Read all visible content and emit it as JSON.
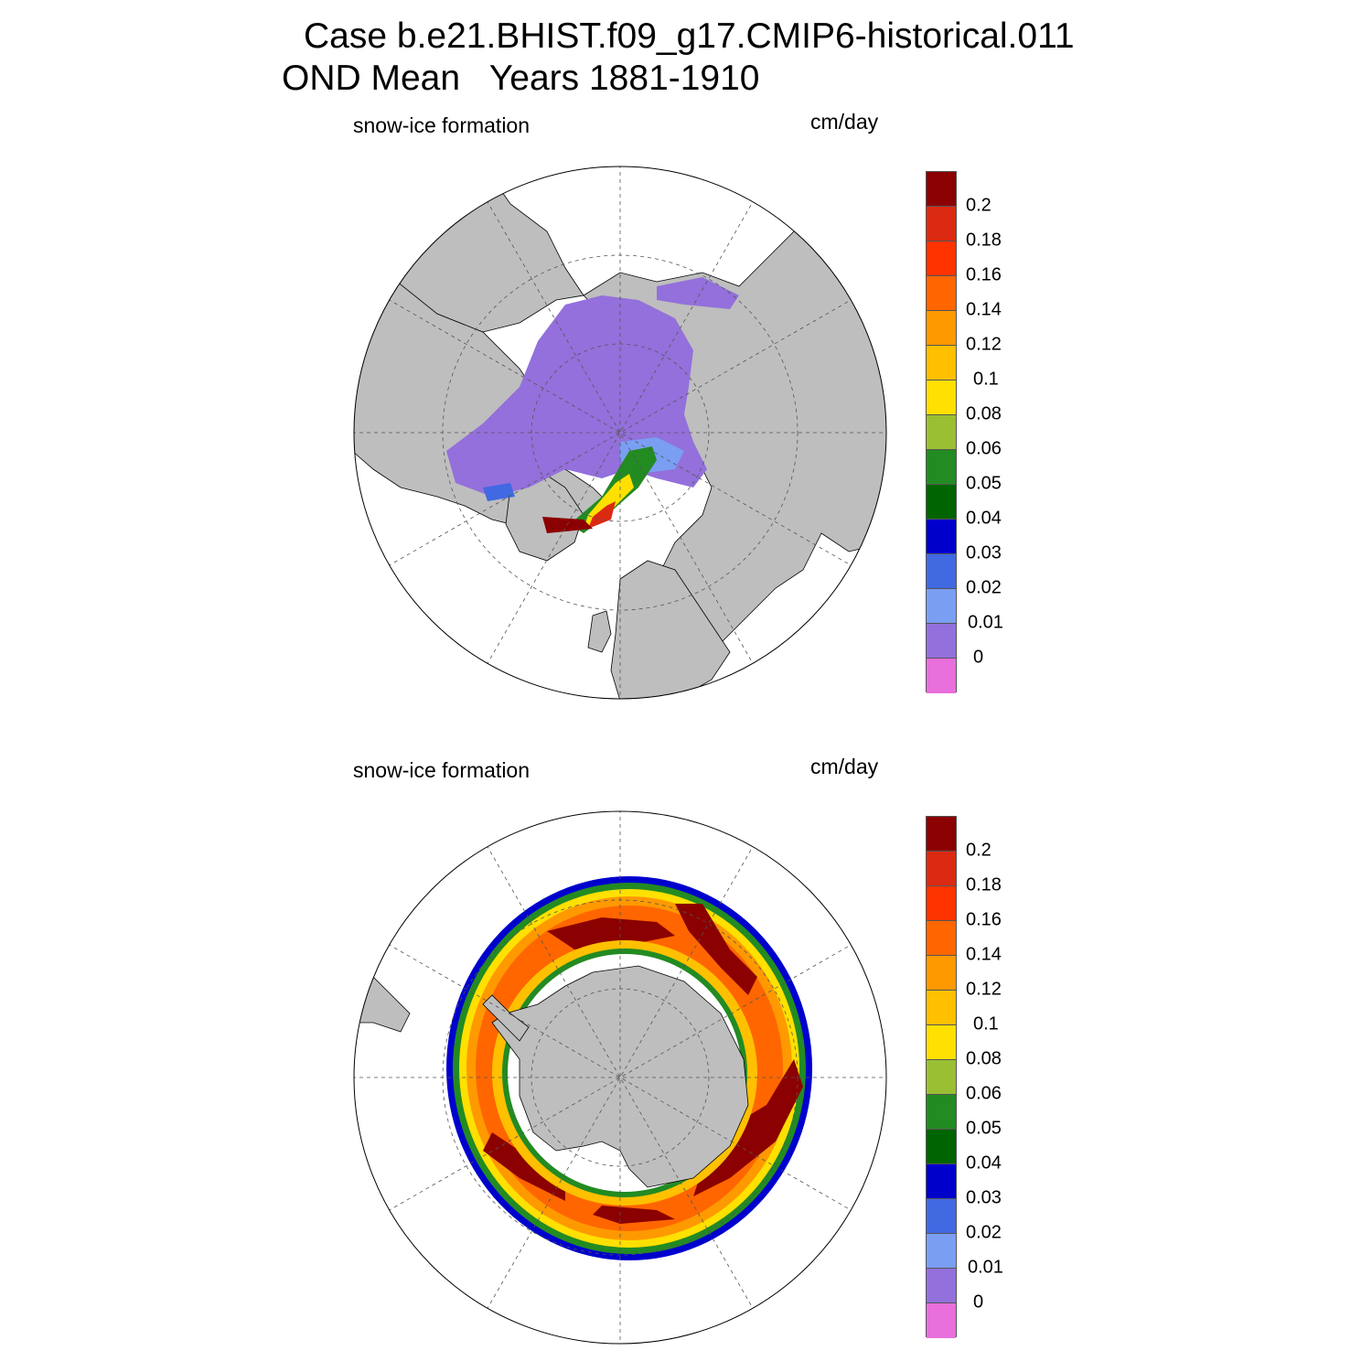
{
  "title": {
    "line1": "Case b.e21.BHIST.f09_g17.CMIP6-historical.011",
    "line2": "OND Mean   Years 1881-1910"
  },
  "panels": [
    {
      "id": "north",
      "variable_label": "snow-ice formation",
      "unit_label": "cm/day",
      "hemisphere": "north"
    },
    {
      "id": "south",
      "variable_label": "snow-ice formation",
      "unit_label": "cm/day",
      "hemisphere": "south"
    }
  ],
  "colorbar": {
    "levels": [
      "0.2",
      "0.18",
      "0.16",
      "0.14",
      "0.12",
      "0.1",
      "0.08",
      "0.06",
      "0.05",
      "0.04",
      "0.03",
      "0.02",
      "0.01",
      "0"
    ],
    "colors_top_to_bottom": [
      "#8b0000",
      "#dc2a12",
      "#ff3300",
      "#ff6600",
      "#ff9900",
      "#ffc000",
      "#ffe000",
      "#9bbf33",
      "#228b22",
      "#006400",
      "#0000cd",
      "#4169e1",
      "#7a9ef2",
      "#9370db",
      "#e86fdc"
    ]
  },
  "colors": {
    "land": "#bebebe",
    "ocean": "#ffffff",
    "grid": "#555555"
  }
}
